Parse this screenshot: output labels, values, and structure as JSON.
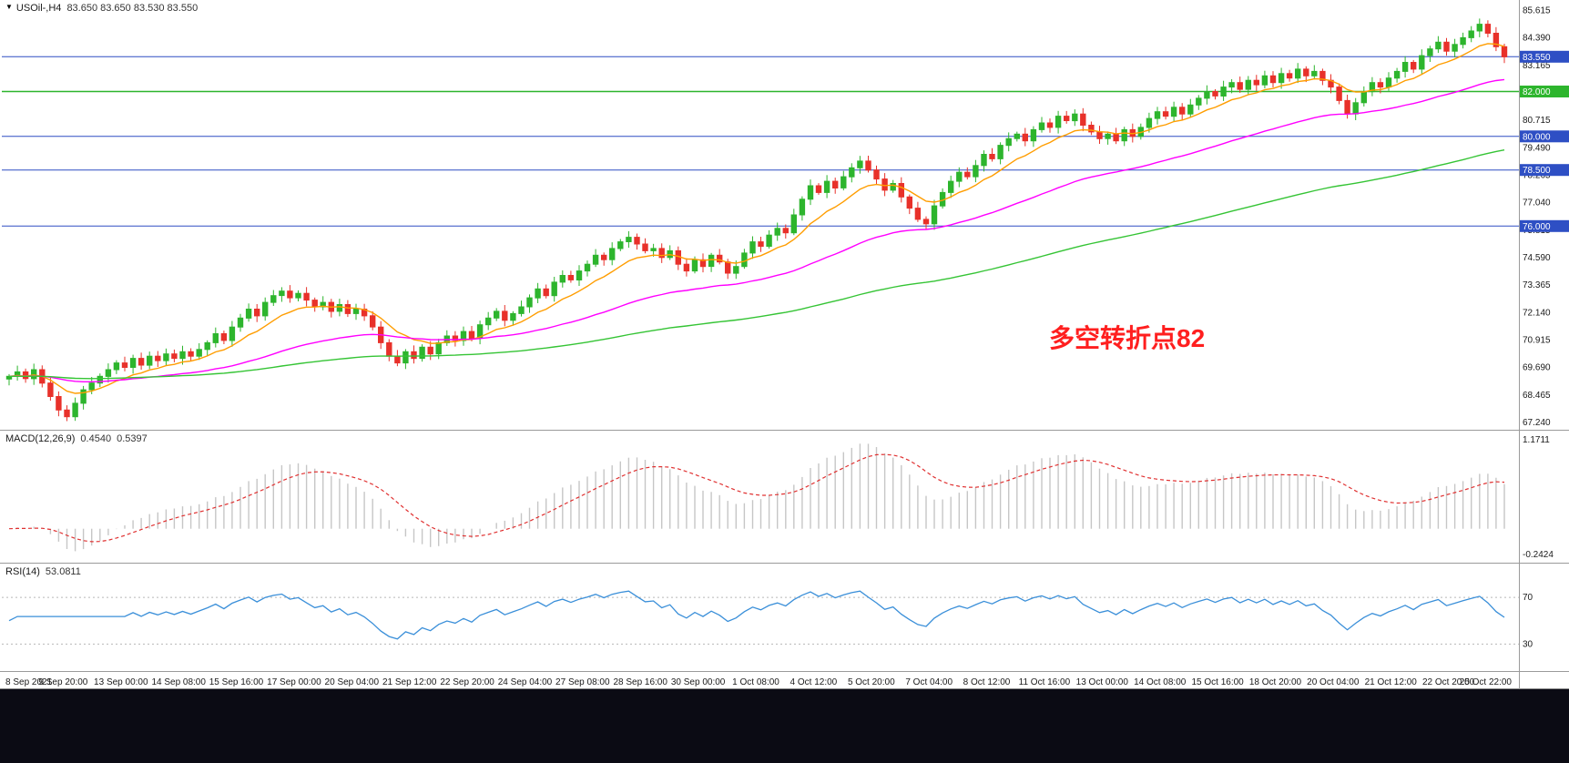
{
  "window": {
    "dropdown_marker": "▼",
    "symbol_period": "USOil-,H4",
    "ohlc_line": "83.650 83.650 83.530 83.550"
  },
  "annotation": {
    "text": "多空转折点82",
    "color": "#ff1f1f"
  },
  "macd_panel": {
    "name": "MACD(12,26,9)",
    "value_main": "0.4540",
    "value_signal": "0.5397",
    "axis_top": "1.1711",
    "axis_bottom": "-0.2424"
  },
  "rsi_panel": {
    "name": "RSI(14)",
    "value": "53.0811",
    "level_top": "70",
    "level_bottom": "30"
  },
  "colors": {
    "background": "#ffffff",
    "candle_up": "#2db52d",
    "candle_down": "#e8312a",
    "panel_border": "#9a9a9a",
    "axis_text": "#1a1a1a",
    "taskbar": "#0b0b14",
    "annotation": "#ff1f1f"
  },
  "chart_data": {
    "type": "candlestick",
    "title": "USOil-,H4",
    "symbol": "USOil-",
    "timeframe": "H4",
    "current_ohlc": {
      "open": 83.65,
      "high": 83.65,
      "low": 83.53,
      "close": 83.55
    },
    "price_axis": {
      "max": 86.0,
      "min": 67.0,
      "ticks": [
        "85.615",
        "84.390",
        "83.165",
        "80.715",
        "79.490",
        "78.265",
        "77.040",
        "75.815",
        "74.590",
        "73.365",
        "72.140",
        "70.915",
        "69.690",
        "68.465",
        "67.240"
      ]
    },
    "closes": [
      69.3,
      69.5,
      69.2,
      69.6,
      69.0,
      68.4,
      67.8,
      67.5,
      68.1,
      68.7,
      69.0,
      69.3,
      69.6,
      69.9,
      69.7,
      70.1,
      69.8,
      70.2,
      70.0,
      70.3,
      70.1,
      70.4,
      70.2,
      70.5,
      70.8,
      71.2,
      70.9,
      71.5,
      71.9,
      72.3,
      72.0,
      72.6,
      72.9,
      73.1,
      72.8,
      73.0,
      72.7,
      72.4,
      72.6,
      72.2,
      72.5,
      72.1,
      72.3,
      72.0,
      71.5,
      70.8,
      70.2,
      69.9,
      70.4,
      70.1,
      70.6,
      70.3,
      70.8,
      71.1,
      70.9,
      71.3,
      71.0,
      71.6,
      71.9,
      72.2,
      71.8,
      72.1,
      72.4,
      72.8,
      73.2,
      72.9,
      73.5,
      73.8,
      73.6,
      74.0,
      74.3,
      74.7,
      74.5,
      75.0,
      75.3,
      75.5,
      75.2,
      74.9,
      75.0,
      74.6,
      74.9,
      74.3,
      74.0,
      74.5,
      74.2,
      74.7,
      74.4,
      73.9,
      74.2,
      74.8,
      75.3,
      75.1,
      75.6,
      75.9,
      75.7,
      76.5,
      77.2,
      77.8,
      77.5,
      78.0,
      77.7,
      78.2,
      78.6,
      78.9,
      78.5,
      78.1,
      77.6,
      77.9,
      77.3,
      76.8,
      76.3,
      76.1,
      76.9,
      77.5,
      78.0,
      78.4,
      78.2,
      78.7,
      79.2,
      79.0,
      79.6,
      79.9,
      80.1,
      79.8,
      80.3,
      80.6,
      80.4,
      80.9,
      80.7,
      81.0,
      80.5,
      80.2,
      79.9,
      80.1,
      79.8,
      80.3,
      80.0,
      80.4,
      80.8,
      81.1,
      80.9,
      81.3,
      81.0,
      81.4,
      81.7,
      82.0,
      81.8,
      82.2,
      82.4,
      82.1,
      82.5,
      82.3,
      82.7,
      82.4,
      82.8,
      82.6,
      83.0,
      82.7,
      82.9,
      82.5,
      82.2,
      81.6,
      81.0,
      81.5,
      82.0,
      82.4,
      82.2,
      82.6,
      82.9,
      83.3,
      83.0,
      83.6,
      83.9,
      84.2,
      83.8,
      84.1,
      84.4,
      84.7,
      85.0,
      84.6,
      84.0,
      83.55
    ],
    "levels": [
      {
        "price": 83.55,
        "label": "83.550",
        "color": "#2e4fc4",
        "type": "current-price"
      },
      {
        "price": 82.0,
        "label": "82.000",
        "color": "#2db52d",
        "type": "horizontal-line"
      },
      {
        "price": 80.0,
        "label": "80.000",
        "color": "#2e4fc4",
        "type": "horizontal-line"
      },
      {
        "price": 78.5,
        "label": "78.500",
        "color": "#2e4fc4",
        "type": "horizontal-line"
      },
      {
        "price": 76.0,
        "label": "76.000",
        "color": "#2e4fc4",
        "type": "horizontal-line"
      }
    ],
    "moving_averages": [
      {
        "name": "ma-fast",
        "period": 10,
        "color": "#ff9d00"
      },
      {
        "name": "ma-mid",
        "period": 44,
        "color": "#ff00ff"
      },
      {
        "name": "ma-slow",
        "period": 120,
        "color": "#35c435"
      }
    ],
    "macd": {
      "fast": 12,
      "slow": 26,
      "signal_period": 9,
      "main": 0.454,
      "signal": 0.5397,
      "axis_max": 1.1711,
      "axis_min": -0.2424,
      "histogram_color": "#c6c6c6",
      "signal_color": "#e03131"
    },
    "rsi": {
      "period": 14,
      "value": 53.0811,
      "levels": [
        70,
        30
      ],
      "line_color": "#3a8fd9"
    },
    "time_axis": {
      "labels": [
        "8 Sep 2021",
        "9 Sep 20:00",
        "13 Sep 00:00",
        "14 Sep 08:00",
        "15 Sep 16:00",
        "17 Sep 00:00",
        "20 Sep 04:00",
        "21 Sep 12:00",
        "22 Sep 20:00",
        "24 Sep 04:00",
        "27 Sep 08:00",
        "28 Sep 16:00",
        "30 Sep 00:00",
        "1 Oct 08:00",
        "4 Oct 12:00",
        "5 Oct 20:00",
        "7 Oct 04:00",
        "8 Oct 12:00",
        "11 Oct 16:00",
        "13 Oct 00:00",
        "14 Oct 08:00",
        "15 Oct 16:00",
        "18 Oct 20:00",
        "20 Oct 04:00",
        "21 Oct 12:00",
        "22 Oct 20:00",
        "25 Oct 22:00"
      ]
    }
  }
}
